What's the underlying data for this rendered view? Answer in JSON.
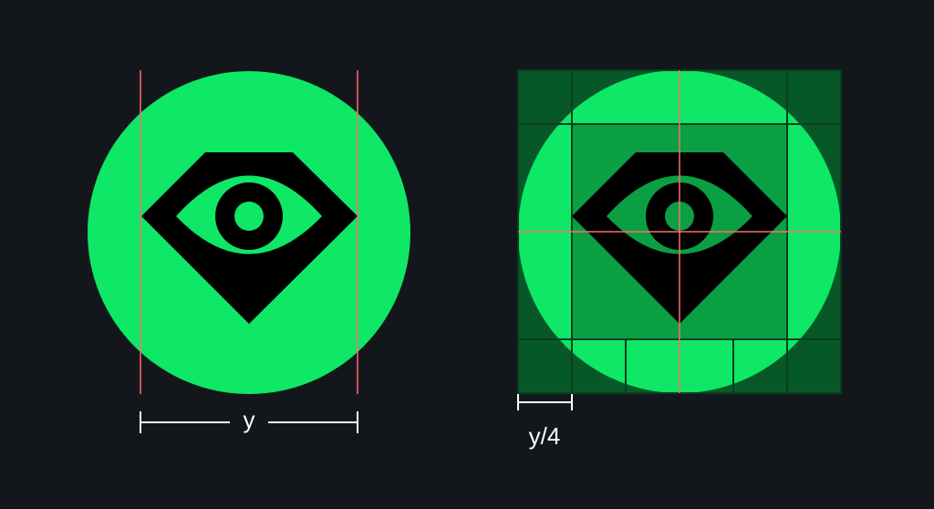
{
  "colors": {
    "background": "#13171b",
    "brand_green": "#0fe766",
    "grid_dark": "#065926",
    "grid_mid": "#0b9f44",
    "grid_line": "#0a3d1d",
    "guide_red": "#ff6b6b",
    "mark_black": "#000000",
    "dimension_white": "#ffffff"
  },
  "icons": {
    "logo": "eye-in-diamond-icon"
  },
  "left_panel": {
    "dimension_label": "y"
  },
  "right_panel": {
    "dimension_label": "y/4"
  }
}
